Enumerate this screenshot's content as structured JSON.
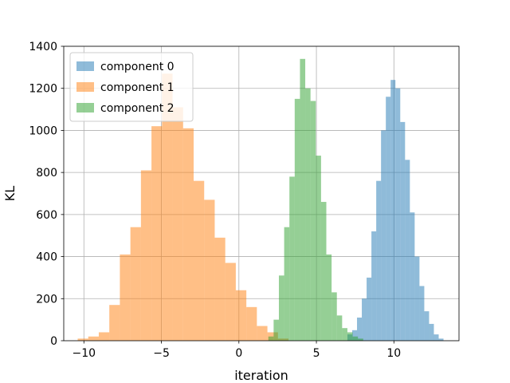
{
  "chart_data": {
    "type": "histogram",
    "title": "",
    "xlabel": "iteration",
    "ylabel": "KL",
    "xlim": [
      -11.3,
      14.2
    ],
    "ylim": [
      0,
      1400
    ],
    "xticks": [
      -10,
      -5,
      0,
      5,
      10
    ],
    "xtick_labels": [
      "−10",
      "−5",
      "0",
      "5",
      "10"
    ],
    "yticks": [
      0,
      200,
      400,
      600,
      800,
      1000,
      1200,
      1400
    ],
    "ytick_labels": [
      "0",
      "200",
      "400",
      "600",
      "800",
      "1000",
      "1200",
      "1400"
    ],
    "grid": true,
    "legend_position": "upper-left",
    "series": [
      {
        "name": "component 0",
        "color": "#1f77b4",
        "alpha": 0.5,
        "bin_edges": [
          7.0,
          7.31,
          7.62,
          7.93,
          8.24,
          8.55,
          8.86,
          9.17,
          9.48,
          9.79,
          10.1,
          10.41,
          10.72,
          11.03,
          11.34,
          11.65,
          11.96,
          12.27,
          12.58,
          12.89,
          13.2
        ],
        "counts": [
          30,
          50,
          110,
          200,
          300,
          520,
          760,
          1000,
          1160,
          1240,
          1200,
          1040,
          860,
          610,
          400,
          260,
          140,
          80,
          30,
          10
        ]
      },
      {
        "name": "component 1",
        "color": "#ff7f0e",
        "alpha": 0.5,
        "bin_edges": [
          -10.4,
          -9.72,
          -9.04,
          -8.36,
          -7.68,
          -7.0,
          -6.32,
          -5.64,
          -4.96,
          -4.28,
          -3.6,
          -2.92,
          -2.24,
          -1.56,
          -0.88,
          -0.2,
          0.48,
          1.16,
          1.84,
          2.52,
          3.2
        ],
        "counts": [
          10,
          20,
          40,
          170,
          410,
          540,
          810,
          1020,
          1270,
          1110,
          1010,
          760,
          670,
          490,
          370,
          240,
          160,
          70,
          40,
          10
        ]
      },
      {
        "name": "component 2",
        "color": "#2ca02c",
        "alpha": 0.5,
        "bin_edges": [
          1.9,
          2.24,
          2.58,
          2.92,
          3.26,
          3.6,
          3.94,
          4.28,
          4.62,
          4.96,
          5.3,
          5.64,
          5.98,
          6.32,
          6.66,
          7.0,
          7.34,
          7.68,
          8.02
        ],
        "counts": [
          20,
          100,
          310,
          540,
          780,
          1150,
          1340,
          1200,
          1140,
          880,
          660,
          410,
          230,
          120,
          60,
          40,
          20,
          10
        ]
      }
    ]
  }
}
